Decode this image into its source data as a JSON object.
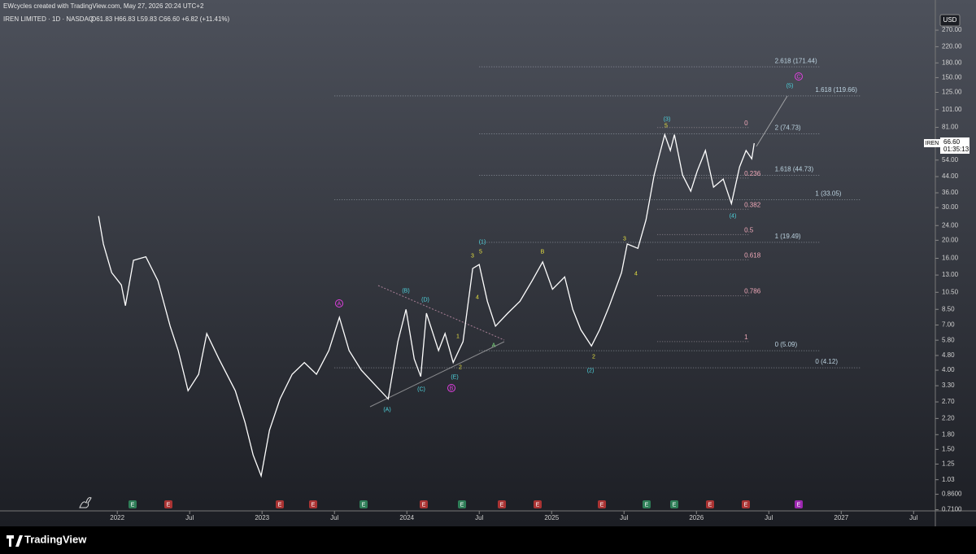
{
  "header": {
    "credit": "EWcycles created with TradingView.com, May 27, 2026 20:24 UTC+2",
    "symbol": "IREN LIMITED · 1D · NASDAQ",
    "ohlc": "O61.83 H66.83 L59.83 C66.60 +6.82 (+11.41%)",
    "currency": "USD"
  },
  "footer": {
    "logo": "TradingView"
  },
  "chart_data": {
    "type": "line",
    "log_scale": true,
    "color": "#ffffff",
    "ylim": [
      0.7,
      290
    ],
    "xlim": [
      2021.19,
      2027.65
    ],
    "yticks": [
      {
        "value": 270,
        "label": "270.00"
      },
      {
        "value": 220,
        "label": "220.00"
      },
      {
        "value": 180,
        "label": "180.00"
      },
      {
        "value": 150,
        "label": "150.00"
      },
      {
        "value": 125,
        "label": "125.00"
      },
      {
        "value": 101,
        "label": "101.00"
      },
      {
        "value": 81,
        "label": "81.00"
      },
      {
        "value": 54,
        "label": "54.00"
      },
      {
        "value": 44,
        "label": "44.00"
      },
      {
        "value": 36,
        "label": "36.00"
      },
      {
        "value": 30,
        "label": "30.00"
      },
      {
        "value": 24,
        "label": "24.00"
      },
      {
        "value": 20,
        "label": "20.00"
      },
      {
        "value": 16,
        "label": "16.00"
      },
      {
        "value": 13,
        "label": "13.00"
      },
      {
        "value": 10.5,
        "label": "10.50"
      },
      {
        "value": 8.5,
        "label": "8.50"
      },
      {
        "value": 7,
        "label": "7.00"
      },
      {
        "value": 5.8,
        "label": "5.80"
      },
      {
        "value": 4.8,
        "label": "4.80"
      },
      {
        "value": 4,
        "label": "4.00"
      },
      {
        "value": 3.3,
        "label": "3.30"
      },
      {
        "value": 2.7,
        "label": "2.70"
      },
      {
        "value": 2.2,
        "label": "2.20"
      },
      {
        "value": 1.8,
        "label": "1.80"
      },
      {
        "value": 1.5,
        "label": "1.50"
      },
      {
        "value": 1.25,
        "label": "1.25"
      },
      {
        "value": 1.03,
        "label": "1.03"
      },
      {
        "value": 0.86,
        "label": "0.8600"
      },
      {
        "value": 0.71,
        "label": "0.7100"
      }
    ],
    "xticks": [
      {
        "value": 2022,
        "label": "2022"
      },
      {
        "value": 2022.5,
        "label": "Jul"
      },
      {
        "value": 2023,
        "label": "2023"
      },
      {
        "value": 2023.5,
        "label": "Jul"
      },
      {
        "value": 2024,
        "label": "2024"
      },
      {
        "value": 2024.5,
        "label": "Jul"
      },
      {
        "value": 2025,
        "label": "2025"
      },
      {
        "value": 2025.5,
        "label": "Jul"
      },
      {
        "value": 2026,
        "label": "2026"
      },
      {
        "value": 2026.5,
        "label": "Jul"
      },
      {
        "value": 2027,
        "label": "2027"
      },
      {
        "value": 2027.5,
        "label": "Jul"
      }
    ],
    "series": [
      {
        "name": "IREN",
        "color": "#ffffff",
        "x": [
          2021.871,
          2021.904,
          2021.961,
          2022.028,
          2022.056,
          2022.112,
          2022.197,
          2022.281,
          2022.365,
          2022.421,
          2022.489,
          2022.562,
          2022.618,
          2022.702,
          2022.815,
          2022.882,
          2022.938,
          2022.994,
          2023.051,
          2023.124,
          2023.208,
          2023.292,
          2023.376,
          2023.461,
          2023.534,
          2023.601,
          2023.685,
          2023.77,
          2023.871,
          2023.938,
          2023.994,
          2024.051,
          2024.096,
          2024.135,
          2024.219,
          2024.264,
          2024.32,
          2024.388,
          2024.455,
          2024.5,
          2024.556,
          2024.612,
          2024.697,
          2024.781,
          2024.865,
          2024.938,
          2025.006,
          2025.09,
          2025.146,
          2025.202,
          2025.275,
          2025.331,
          2025.399,
          2025.483,
          2025.522,
          2025.596,
          2025.652,
          2025.708,
          2025.781,
          2025.82,
          2025.848,
          2025.904,
          2025.961,
          2026.006,
          2026.062,
          2026.118,
          2026.185,
          2026.242,
          2026.298,
          2026.343,
          2026.382,
          2026.399
        ],
        "values": [
          27,
          19.1,
          13.4,
          11.5,
          8.9,
          15.6,
          16.3,
          12.1,
          6.9,
          5.1,
          3.1,
          3.8,
          6.3,
          4.6,
          3.1,
          2.1,
          1.4,
          1.08,
          1.9,
          2.8,
          3.8,
          4.4,
          3.8,
          5.1,
          7.7,
          5.1,
          4.0,
          3.4,
          2.8,
          5.7,
          8.5,
          4.6,
          3.7,
          8.1,
          5.1,
          6.3,
          4.4,
          5.7,
          14.1,
          14.8,
          9.4,
          6.9,
          8.1,
          9.4,
          12.1,
          15.3,
          10.9,
          12.7,
          8.5,
          6.6,
          5.4,
          6.6,
          8.9,
          13.4,
          19.1,
          18.1,
          25.8,
          44.9,
          74,
          60.8,
          74,
          44.9,
          36.7,
          47.2,
          60.8,
          38.6,
          42.7,
          31.5,
          49.6,
          60.8,
          54.9,
          66.6
        ]
      }
    ],
    "last_price": {
      "symbol": "IREN",
      "price": "66.60",
      "countdown": "01:35:13"
    },
    "fib_extensions": [
      {
        "label": "2.618 (171.44)",
        "price": 171.44,
        "from": 2024.5,
        "to": 2026.85
      },
      {
        "label": "1.618 (119.66)",
        "price": 119.66,
        "from": 2023.5,
        "to": 2027.13
      },
      {
        "label": "2 (74.73)",
        "price": 74.73,
        "from": 2024.5,
        "to": 2026.85
      },
      {
        "label": "1.618 (44.73)",
        "price": 44.73,
        "from": 2024.5,
        "to": 2026.85
      },
      {
        "label": "1 (33.05)",
        "price": 33.05,
        "from": 2023.5,
        "to": 2027.13
      },
      {
        "label": "1 (19.49)",
        "price": 19.49,
        "from": 2024.5,
        "to": 2026.85
      },
      {
        "label": "0 (5.09)",
        "price": 5.09,
        "from": 2024.5,
        "to": 2026.85
      },
      {
        "label": "0 (4.12)",
        "price": 4.12,
        "from": 2023.5,
        "to": 2027.13
      }
    ],
    "fib_retracement": {
      "high": 80.8,
      "low": 5.7,
      "from": 2025.73,
      "to": 2026.37,
      "levels": [
        {
          "value": 0,
          "label": "0"
        },
        {
          "value": 0.236,
          "label": "0.236"
        },
        {
          "value": 0.382,
          "label": "0.382"
        },
        {
          "value": 0.5,
          "label": "0.5"
        },
        {
          "value": 0.618,
          "label": "0.618"
        },
        {
          "value": 0.786,
          "label": "0.786"
        },
        {
          "value": 1,
          "label": "1"
        }
      ]
    },
    "wave_labels": [
      "(A)",
      "(B)",
      "(C)",
      "(D)",
      "(E)",
      "A",
      "B",
      "(1)",
      "(2)",
      "(3)",
      "(4)",
      "(5)",
      "C",
      "1",
      "2",
      "3",
      "4",
      "5",
      "A",
      "B",
      "3",
      "4",
      "5",
      "2"
    ],
    "earnings_marker": "E"
  }
}
